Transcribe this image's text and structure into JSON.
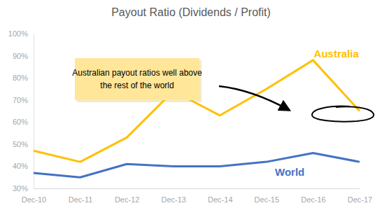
{
  "chart_data": {
    "type": "line",
    "title": "Payout Ratio (Dividends / Profit)",
    "categories": [
      "Dec-10",
      "Dec-11",
      "Dec-12",
      "Dec-13",
      "Dec-14",
      "Dec-15",
      "Dec-16",
      "Dec-17"
    ],
    "series": [
      {
        "name": "Australia",
        "color": "#ffc000",
        "values": [
          47,
          42,
          53,
          74,
          63,
          75,
          88,
          65
        ]
      },
      {
        "name": "World",
        "color": "#4472c4",
        "values": [
          37,
          35,
          41,
          40,
          40,
          42,
          46,
          42
        ]
      }
    ],
    "ylim": [
      30,
      100
    ],
    "yticks": [
      {
        "value": 30,
        "label": "30%"
      },
      {
        "value": 40,
        "label": "40%"
      },
      {
        "value": 50,
        "label": "50%"
      },
      {
        "value": 60,
        "label": "60%"
      },
      {
        "value": 70,
        "label": "70%"
      },
      {
        "value": 80,
        "label": "80%"
      },
      {
        "value": 90,
        "label": "90%"
      },
      {
        "value": 100,
        "label": "100%"
      }
    ],
    "grid": false,
    "annotation": "Australian payout ratios well above the rest of the world"
  }
}
